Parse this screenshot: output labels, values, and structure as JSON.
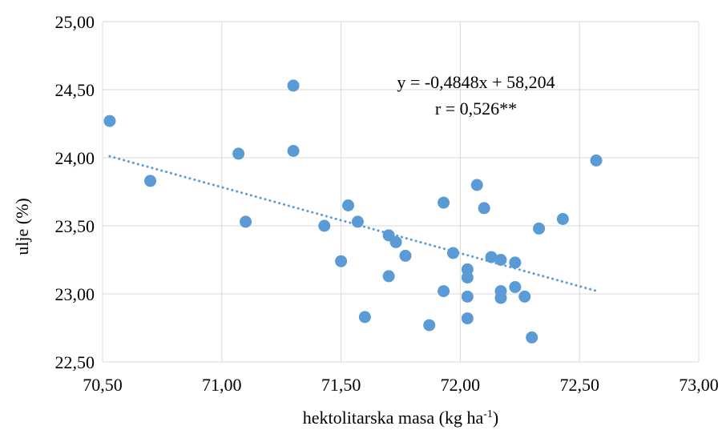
{
  "chart_data": {
    "type": "scatter",
    "title": "",
    "xlabel": "hektolitarska masa (kg ha",
    "xlabel_sup": "-1",
    "xlabel_end": ")",
    "ylabel": "ulje (%)",
    "xlim": [
      70.5,
      73.0
    ],
    "ylim": [
      22.5,
      25.0
    ],
    "x_ticks": [
      70.5,
      71.0,
      71.5,
      72.0,
      72.5,
      73.0
    ],
    "x_tick_labels": [
      "70,50",
      "71,00",
      "71,50",
      "72,00",
      "72,50",
      "73,00"
    ],
    "y_ticks": [
      22.5,
      23.0,
      23.5,
      24.0,
      24.5,
      25.0
    ],
    "y_tick_labels": [
      "22,50",
      "23,00",
      "23,50",
      "24,00",
      "24,50",
      "25,00"
    ],
    "grid": "vertical and horizontal major lines",
    "point_color": "#5b9bd5",
    "trendline_color": "#5b9bd5",
    "trendline": {
      "slope": -0.4848,
      "intercept": 58.204,
      "x_range": [
        70.53,
        72.57
      ]
    },
    "annotation": {
      "equation": "y = -0,4848x + 58,204",
      "r": "r = 0,526**"
    },
    "points": [
      [
        70.53,
        24.27
      ],
      [
        70.7,
        23.83
      ],
      [
        71.07,
        24.03
      ],
      [
        71.1,
        23.53
      ],
      [
        71.3,
        24.53
      ],
      [
        71.3,
        24.05
      ],
      [
        71.43,
        23.5
      ],
      [
        71.5,
        23.24
      ],
      [
        71.53,
        23.65
      ],
      [
        71.57,
        23.53
      ],
      [
        71.6,
        22.83
      ],
      [
        71.7,
        23.43
      ],
      [
        71.7,
        23.13
      ],
      [
        71.73,
        23.38
      ],
      [
        71.77,
        23.28
      ],
      [
        71.87,
        22.77
      ],
      [
        71.93,
        23.67
      ],
      [
        71.93,
        23.02
      ],
      [
        71.97,
        23.3
      ],
      [
        72.03,
        23.18
      ],
      [
        72.03,
        23.12
      ],
      [
        72.03,
        22.98
      ],
      [
        72.03,
        22.82
      ],
      [
        72.07,
        23.8
      ],
      [
        72.1,
        23.63
      ],
      [
        72.13,
        23.27
      ],
      [
        72.17,
        23.25
      ],
      [
        72.17,
        23.02
      ],
      [
        72.17,
        22.97
      ],
      [
        72.23,
        23.23
      ],
      [
        72.23,
        23.05
      ],
      [
        72.27,
        22.98
      ],
      [
        72.3,
        22.68
      ],
      [
        72.33,
        23.48
      ],
      [
        72.43,
        23.55
      ],
      [
        72.57,
        23.98
      ]
    ]
  }
}
